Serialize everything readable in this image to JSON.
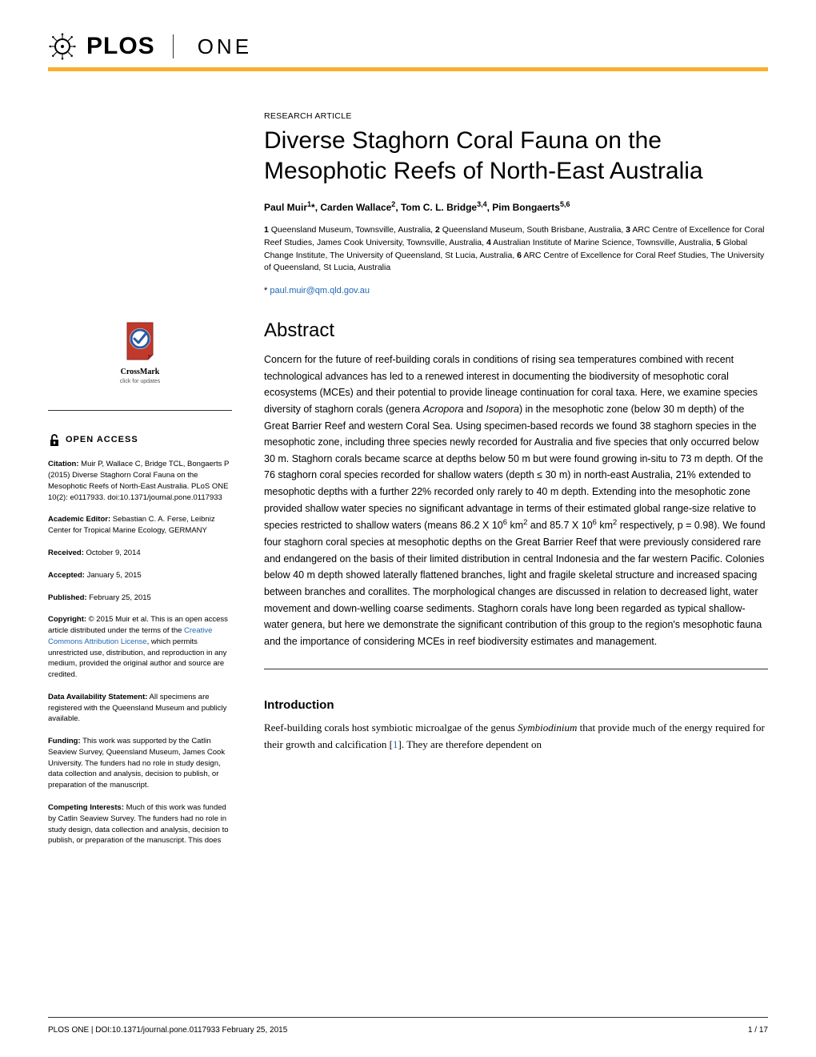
{
  "header": {
    "brand": "PLOS",
    "journal": "ONE"
  },
  "article": {
    "type": "RESEARCH ARTICLE",
    "title": "Diverse Staghorn Coral Fauna on the Mesophotic Reefs of North-East Australia",
    "authors_html": "Paul Muir<sup>1</sup>*, Carden Wallace<sup>2</sup>, Tom C. L. Bridge<sup>3,4</sup>, Pim Bongaerts<sup>5,6</sup>",
    "affiliations_html": "<b>1</b> Queensland Museum, Townsville, Australia, <b>2</b> Queensland Museum, South Brisbane, Australia, <b>3</b> ARC Centre of Excellence for Coral Reef Studies, James Cook University, Townsville, Australia, <b>4</b> Australian Institute of Marine Science, Townsville, Australia, <b>5</b> Global Change Institute, The University of Queensland, St Lucia, Australia, <b>6</b> ARC Centre of Excellence for Coral Reef Studies, The University of Queensland, St Lucia, Australia",
    "email": "paul.muir@qm.qld.gov.au"
  },
  "crossmark": {
    "label": "CrossMark",
    "sub": "click for updates"
  },
  "sidebar": {
    "open_access": "OPEN ACCESS",
    "citation_label": "Citation:",
    "citation_text": " Muir P, Wallace C, Bridge TCL, Bongaerts P (2015) Diverse Staghorn Coral Fauna on the Mesophotic Reefs of North-East Australia. PLoS ONE 10(2): e0117933. doi:10.1371/journal.pone.0117933",
    "editor_label": "Academic Editor:",
    "editor_text": " Sebastian C. A. Ferse, Leibniz Center for Tropical Marine Ecology, GERMANY",
    "received_label": "Received:",
    "received_text": " October 9, 2014",
    "accepted_label": "Accepted:",
    "accepted_text": " January 5, 2015",
    "published_label": "Published:",
    "published_text": " February 25, 2015",
    "copyright_label": "Copyright:",
    "copyright_text_pre": " © 2015 Muir et al. This is an open access article distributed under the terms of the ",
    "copyright_link": "Creative Commons Attribution License",
    "copyright_text_post": ", which permits unrestricted use, distribution, and reproduction in any medium, provided the original author and source are credited.",
    "data_label": "Data Availability Statement:",
    "data_text": " All specimens are registered with the Queensland Museum and publicly available.",
    "funding_label": "Funding:",
    "funding_text": " This work was supported by the Catlin Seaview Survey, Queensland Museum, James Cook University. The funders had no role in study design, data collection and analysis, decision to publish, or preparation of the manuscript.",
    "competing_label": "Competing Interests:",
    "competing_text": " Much of this work was funded by Catlin Seaview Survey. The funders had no role in study design, data collection and analysis, decision to publish, or preparation of the manuscript. This does"
  },
  "abstract": {
    "heading": "Abstract",
    "text_html": "Concern for the future of reef-building corals in conditions of rising sea temperatures combined with recent technological advances has led to a renewed interest in documenting the biodiversity of mesophotic coral ecosystems (MCEs) and their potential to provide lineage continuation for coral taxa. Here, we examine species diversity of staghorn corals (genera <i>Acropora</i> and <i>Isopora</i>) in the mesophotic zone (below 30 m depth) of the Great Barrier Reef and western Coral Sea. Using specimen-based records we found 38 staghorn species in the mesophotic zone, including three species newly recorded for Australia and five species that only occurred below 30 m. Staghorn corals became scarce at depths below 50 m but were found growing in-situ to 73 m depth. Of the 76 staghorn coral species recorded for shallow waters (depth ≤ 30 m) in north-east Australia, 21% extended to mesophotic depths with a further 22% recorded only rarely to 40 m depth. Extending into the mesophotic zone provided shallow water species no significant advantage in terms of their estimated global range-size relative to species restricted to shallow waters (means 86.2 X 10<sup>6</sup> km<sup>2</sup> and 85.7 X 10<sup>6</sup> km<sup>2</sup> respectively, p = 0.98). We found four staghorn coral species at mesophotic depths on the Great Barrier Reef that were previously considered rare and endangered on the basis of their limited distribution in central Indonesia and the far western Pacific. Colonies below 40 m depth showed laterally flattened branches, light and fragile skeletal structure and increased spacing between branches and corallites. The morphological changes are discussed in relation to decreased light, water movement and down-welling coarse sediments. Staghorn corals have long been regarded as typical shallow-water genera, but here we demonstrate the significant contribution of this group to the region's mesophotic fauna and the importance of considering MCEs in reef biodiversity estimates and management."
  },
  "introduction": {
    "heading": "Introduction",
    "text_html": "Reef-building corals host symbiotic microalgae of the genus <i>Symbiodinium</i> that provide much of the energy required for their growth and calcification [<span class='link'>1</span>]. They are therefore dependent on"
  },
  "footer": {
    "left": "PLOS ONE | DOI:10.1371/journal.pone.0117933    February 25, 2015",
    "right": "1 / 17"
  },
  "colors": {
    "orange": "#f8af2d",
    "link": "#2168b5",
    "crossmark_red": "#c0392b",
    "crossmark_blue": "#2c5aa0"
  }
}
